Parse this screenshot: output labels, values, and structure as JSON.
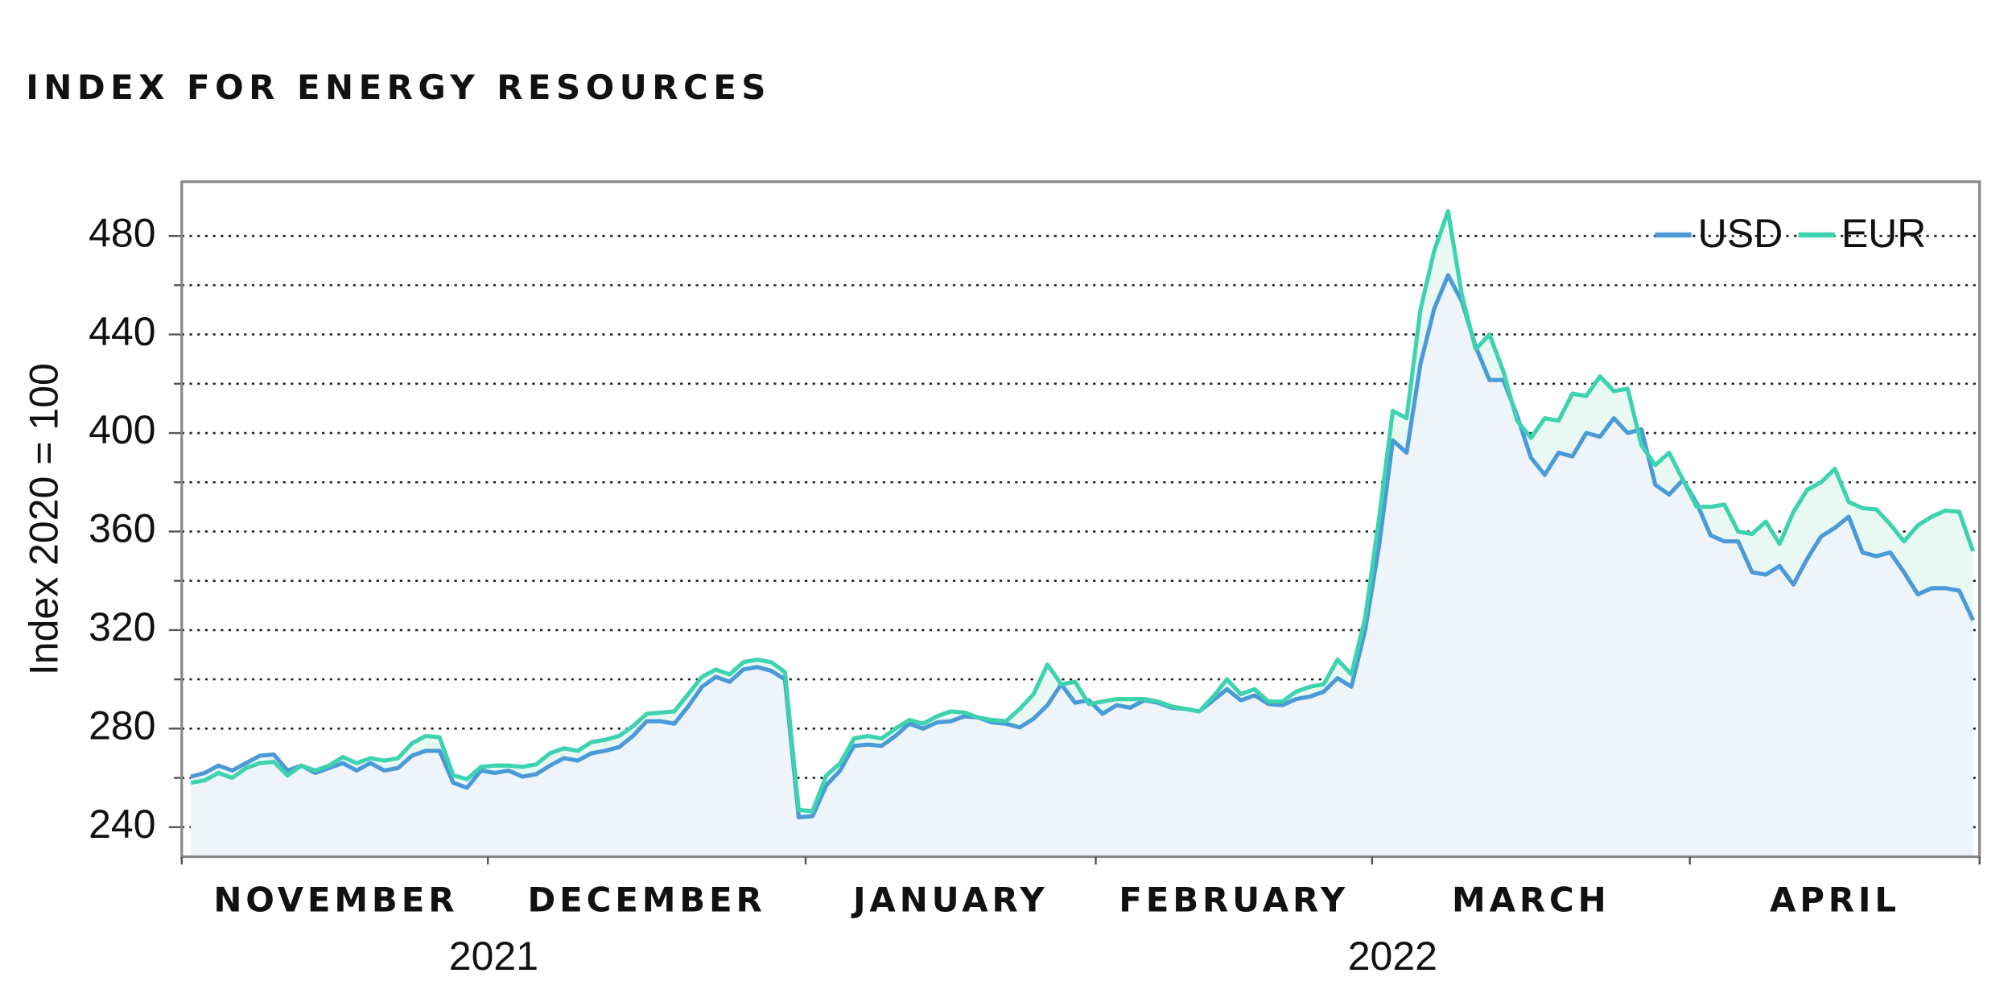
{
  "chart_data": {
    "type": "line",
    "title": "INDEX FOR ENERGY RESOURCES",
    "y_label": "Index 2020 = 100",
    "categories": [
      "NOVEMBER",
      "NOVEMBER",
      "NOVEMBER",
      "NOVEMBER",
      "NOVEMBER",
      "NOVEMBER",
      "NOVEMBER",
      "NOVEMBER",
      "NOVEMBER",
      "NOVEMBER",
      "NOVEMBER",
      "NOVEMBER",
      "NOVEMBER",
      "NOVEMBER",
      "NOVEMBER",
      "NOVEMBER",
      "NOVEMBER",
      "NOVEMBER",
      "NOVEMBER",
      "NOVEMBER",
      "NOVEMBER",
      "NOVEMBER",
      "DECEMBER",
      "DECEMBER",
      "DECEMBER",
      "DECEMBER",
      "DECEMBER",
      "DECEMBER",
      "DECEMBER",
      "DECEMBER",
      "DECEMBER",
      "DECEMBER",
      "DECEMBER",
      "DECEMBER",
      "DECEMBER",
      "DECEMBER",
      "DECEMBER",
      "DECEMBER",
      "DECEMBER",
      "DECEMBER",
      "DECEMBER",
      "DECEMBER",
      "DECEMBER",
      "DECEMBER",
      "DECEMBER",
      "JANUARY",
      "JANUARY",
      "JANUARY",
      "JANUARY",
      "JANUARY",
      "JANUARY",
      "JANUARY",
      "JANUARY",
      "JANUARY",
      "JANUARY",
      "JANUARY",
      "JANUARY",
      "JANUARY",
      "JANUARY",
      "JANUARY",
      "JANUARY",
      "JANUARY",
      "JANUARY",
      "JANUARY",
      "JANUARY",
      "JANUARY",
      "FEBRUARY",
      "FEBRUARY",
      "FEBRUARY",
      "FEBRUARY",
      "FEBRUARY",
      "FEBRUARY",
      "FEBRUARY",
      "FEBRUARY",
      "FEBRUARY",
      "FEBRUARY",
      "FEBRUARY",
      "FEBRUARY",
      "FEBRUARY",
      "FEBRUARY",
      "FEBRUARY",
      "FEBRUARY",
      "FEBRUARY",
      "FEBRUARY",
      "FEBRUARY",
      "FEBRUARY",
      "MARCH",
      "MARCH",
      "MARCH",
      "MARCH",
      "MARCH",
      "MARCH",
      "MARCH",
      "MARCH",
      "MARCH",
      "MARCH",
      "MARCH",
      "MARCH",
      "MARCH",
      "MARCH",
      "MARCH",
      "MARCH",
      "MARCH",
      "MARCH",
      "MARCH",
      "MARCH",
      "MARCH",
      "MARCH",
      "MARCH",
      "APRIL",
      "APRIL",
      "APRIL",
      "APRIL",
      "APRIL",
      "APRIL",
      "APRIL",
      "APRIL",
      "APRIL",
      "APRIL",
      "APRIL",
      "APRIL",
      "APRIL",
      "APRIL",
      "APRIL",
      "APRIL",
      "APRIL",
      "APRIL",
      "APRIL",
      "APRIL",
      "APRIL"
    ],
    "years": [
      "2021",
      "2022"
    ],
    "series": [
      {
        "name": "USD",
        "color": "#4a9ad8",
        "fill": "#eef4fa",
        "values": [
          260.5,
          262,
          265,
          263,
          266,
          269,
          269.5,
          263,
          265,
          262,
          264,
          266,
          263,
          266,
          263,
          264,
          269,
          271,
          271,
          258,
          256,
          263,
          262,
          263,
          260.5,
          261.5,
          265,
          268,
          267,
          270,
          271,
          272.5,
          277,
          283,
          283,
          282,
          289,
          297,
          301,
          299,
          304,
          305,
          303.5,
          300,
          244,
          244.5,
          257,
          263,
          273,
          273.5,
          273,
          277,
          282,
          280,
          282.5,
          283,
          285,
          284.5,
          282.5,
          282,
          280.5,
          284,
          289.5,
          298,
          290.5,
          291.5,
          286,
          289.5,
          288.5,
          291.5,
          290.5,
          288.5,
          288,
          287,
          291.5,
          296,
          291.5,
          293.5,
          290,
          289.5,
          292,
          293,
          295,
          300.5,
          297,
          320,
          354,
          397,
          392,
          428,
          450.5,
          464,
          453.5,
          435,
          421.5,
          421.5,
          407,
          390,
          383,
          392,
          390.5,
          400,
          398.5,
          406,
          400,
          401.5,
          379,
          375,
          381,
          371.5,
          358.5,
          356,
          356,
          343.5,
          342.5,
          346,
          338.5,
          349,
          358,
          361.5,
          366,
          351.5,
          350,
          351.5,
          343.5,
          334.5,
          337,
          337,
          336,
          324
        ]
      },
      {
        "name": "EUR",
        "color": "#3dd3ae",
        "fill": "#e9f8f3",
        "values": [
          258,
          259,
          262,
          260,
          264,
          266,
          266.5,
          261,
          265,
          263,
          265,
          268.5,
          266,
          268,
          267,
          268,
          274,
          277,
          276.5,
          261,
          259.5,
          264.5,
          265,
          265,
          264.5,
          265.5,
          270,
          272,
          271,
          274.5,
          275.5,
          277,
          281,
          286,
          286.5,
          287,
          294,
          301,
          304,
          302,
          307,
          308,
          307,
          303,
          247,
          246.5,
          261,
          266,
          276,
          277,
          276,
          280,
          283.5,
          282,
          285,
          287,
          286.5,
          284.5,
          283.5,
          283,
          288,
          294,
          306,
          298,
          299,
          290,
          291,
          292,
          292,
          292,
          291,
          289,
          288,
          287,
          293,
          300,
          294,
          296,
          291,
          291,
          295,
          297,
          298,
          308,
          302,
          325,
          365,
          409,
          406,
          450,
          474,
          490,
          456,
          434,
          440,
          425,
          405,
          398,
          406,
          405,
          416,
          415,
          423,
          417,
          418,
          395,
          387,
          392,
          381,
          370,
          370,
          371,
          360,
          359,
          364,
          355,
          368,
          377,
          380,
          385.5,
          372,
          369.5,
          369,
          363,
          356,
          362.5,
          366,
          368.5,
          368,
          352
        ]
      }
    ],
    "ylim": [
      228,
      502
    ],
    "yticks": [
      240,
      280,
      320,
      360,
      400,
      440,
      480
    ],
    "yminor": [
      260,
      300,
      340,
      380,
      420,
      460
    ],
    "grid": true,
    "legend": "upper right"
  }
}
